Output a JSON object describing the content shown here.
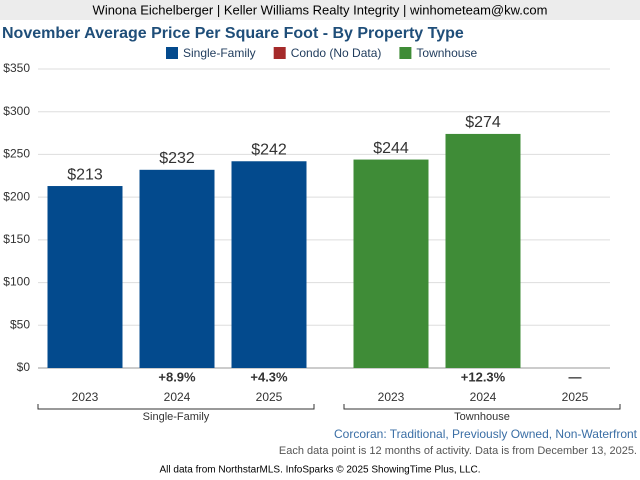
{
  "header": "Winona Eichelberger | Keller Williams Realty Integrity | winhometeam@kw.com",
  "chart_data": {
    "type": "bar",
    "title": "November Average Price Per Square Foot - By Property Type",
    "categories": [
      "2023",
      "2024",
      "2025"
    ],
    "series": [
      {
        "name": "Single-Family",
        "color": "#034a8d",
        "values": [
          213,
          232,
          242
        ],
        "value_labels": [
          "$213",
          "$232",
          "$242"
        ],
        "change_labels": [
          null,
          "+8.9%",
          "+4.3%"
        ]
      },
      {
        "name": "Condo (No Data)",
        "color": "#a52a2a",
        "values": [
          null,
          null,
          null
        ]
      },
      {
        "name": "Townhouse",
        "color": "#3f8c37",
        "values": [
          244,
          274,
          null
        ],
        "value_labels": [
          "$244",
          "$274",
          null
        ],
        "change_labels": [
          null,
          "+12.3%",
          "—"
        ]
      }
    ],
    "ylim": [
      0,
      350
    ],
    "yticks": [
      {
        "value": 0,
        "label": "$0"
      },
      {
        "value": 50,
        "label": "$50"
      },
      {
        "value": 100,
        "label": "$100"
      },
      {
        "value": 150,
        "label": "$150"
      },
      {
        "value": 200,
        "label": "$200"
      },
      {
        "value": 250,
        "label": "$250"
      },
      {
        "value": 300,
        "label": "$300"
      },
      {
        "value": 350,
        "label": "$350"
      }
    ],
    "grid": true
  },
  "footer": {
    "filter": "Corcoran: Traditional, Previously Owned, Non-Waterfront",
    "note": "Each data point is 12 months of activity. Data is from December 13, 2025.",
    "credit": "All data from NorthstarMLS. InfoSparks © 2025 ShowingTime Plus, LLC."
  }
}
